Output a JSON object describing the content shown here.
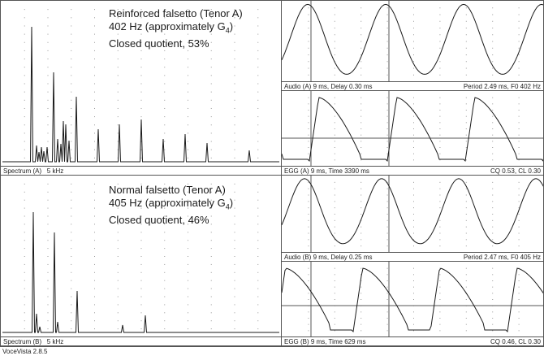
{
  "panels": {
    "spectrum_a": {
      "label": "Spectrum (A)",
      "range": "5 kHz",
      "annotation": {
        "line1": "Reinforced falsetto (Tenor A)",
        "line2_prefix": "402 Hz (approximately G",
        "line2_sub": "4",
        "line2_suffix": ")",
        "line3": "Closed quotient, 53%"
      }
    },
    "spectrum_b": {
      "label": "Spectrum (B)",
      "range": "5 kHz",
      "annotation": {
        "line1": "Normal falsetto (Tenor A)",
        "line2_prefix": "405 Hz (approximately G",
        "line2_sub": "4",
        "line2_suffix": ")",
        "line3": "Closed quotient, 46%"
      }
    },
    "audio_a": {
      "left": "Audio (A) 9  ms, Delay 0.30 ms",
      "right": "Period 2.49 ms, F0 402 Hz"
    },
    "egg_a": {
      "left": "EGG (A) 9  ms, Time 3390 ms",
      "right": "CQ 0.53, CL 0.30"
    },
    "audio_b": {
      "left": "Audio (B) 9  ms, Delay 0.25 ms",
      "right": "Period 2.47 ms, F0 405 Hz"
    },
    "egg_b": {
      "left": "EGG (B) 9  ms, Time 629  ms",
      "right": "CQ 0.46, CL 0.30"
    }
  },
  "footer": {
    "app_version": "VoceVista 2.8.5"
  },
  "colors": {
    "trace": "#1a1a1a",
    "grid": "#9a9a9a",
    "border": "#555555"
  }
}
